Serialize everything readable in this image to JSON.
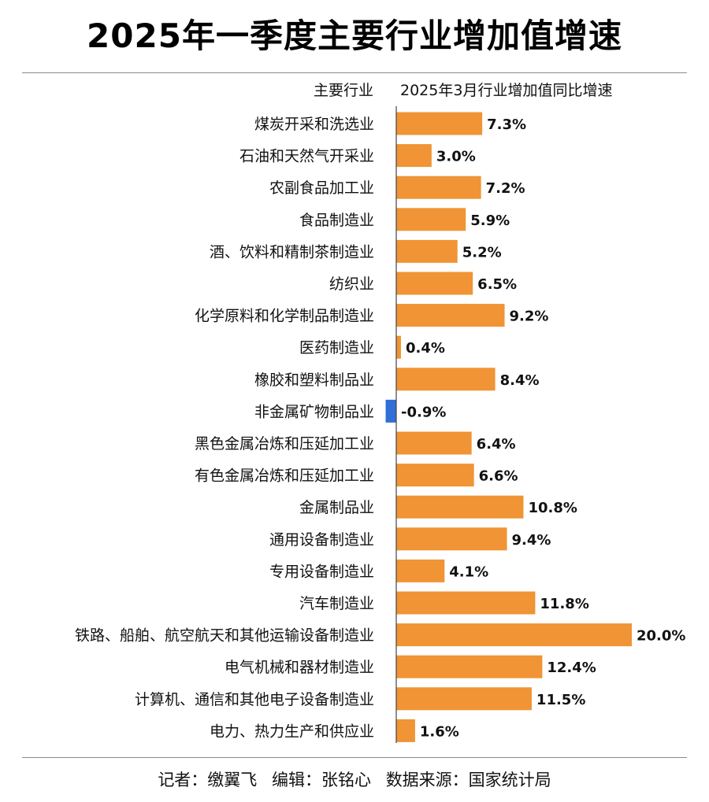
{
  "title": "2025年一季度主要行业增加值增速",
  "header": {
    "category_label": "主要行业",
    "value_label": "2025年3月行业增加值同比增速"
  },
  "colors": {
    "positive": "#F09435",
    "negative": "#2F6FD6",
    "axis": "#444444",
    "text": "#111111"
  },
  "chart_data": {
    "type": "bar",
    "orientation": "horizontal",
    "categories": [
      "煤炭开采和洗选业",
      "石油和天然气开采业",
      "农副食品加工业",
      "食品制造业",
      "酒、饮料和精制茶制造业",
      "纺织业",
      "化学原料和化学制品制造业",
      "医药制造业",
      "橡胶和塑料制品业",
      "非金属矿物制品业",
      "黑色金属冶炼和压延加工业",
      "有色金属冶炼和压延加工业",
      "金属制品业",
      "通用设备制造业",
      "专用设备制造业",
      "汽车制造业",
      "铁路、船舶、航空航天和其他运输设备制造业",
      "电气机械和器材制造业",
      "计算机、通信和其他电子设备制造业",
      "电力、热力生产和供应业"
    ],
    "values": [
      7.3,
      3.0,
      7.2,
      5.9,
      5.2,
      6.5,
      9.2,
      0.4,
      8.4,
      -0.9,
      6.4,
      6.6,
      10.8,
      9.4,
      4.1,
      11.8,
      20.0,
      12.4,
      11.5,
      1.6
    ],
    "labels": [
      "7.3%",
      "3.0%",
      "7.2%",
      "5.9%",
      "5.2%",
      "6.5%",
      "9.2%",
      "0.4%",
      "8.4%",
      "-0.9%",
      "6.4%",
      "6.6%",
      "10.8%",
      "9.4%",
      "4.1%",
      "11.8%",
      "20.0%",
      "12.4%",
      "11.5%",
      "1.6%"
    ],
    "unit": "%",
    "xlim": [
      -1,
      20
    ],
    "grid": false,
    "legend": "none"
  },
  "footer": {
    "reporter": "记者：缴翼飞",
    "editor": "编辑：张铭心",
    "source": "数据来源：国家统计局"
  }
}
